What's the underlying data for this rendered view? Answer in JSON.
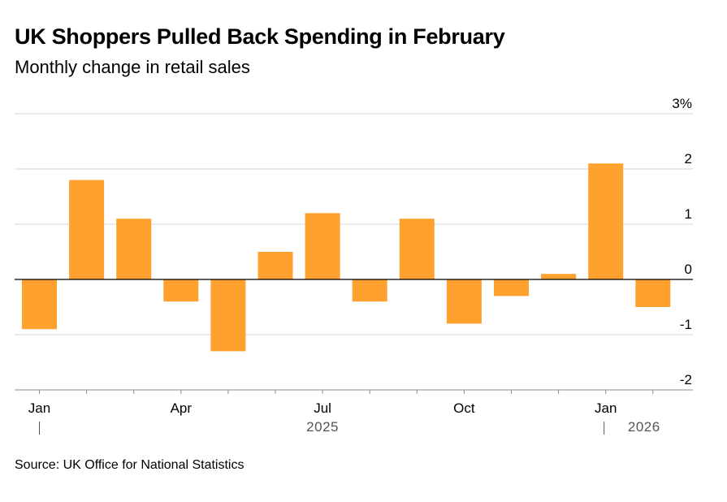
{
  "chart_data": {
    "type": "bar",
    "title": "UK Shoppers Pulled Back Spending in February",
    "subtitle": "Monthly change in retail sales",
    "categories": [
      "Jan 2025",
      "Feb 2025",
      "Mar 2025",
      "Apr 2025",
      "May 2025",
      "Jun 2025",
      "Jul 2025",
      "Aug 2025",
      "Sep 2025",
      "Oct 2025",
      "Nov 2025",
      "Dec 2025",
      "Jan 2026",
      "Feb 2026"
    ],
    "values": [
      -0.9,
      1.8,
      1.1,
      -0.4,
      -1.3,
      0.5,
      1.2,
      -0.4,
      1.1,
      -0.8,
      -0.3,
      0.1,
      2.1,
      -0.5
    ],
    "ylim": [
      -2,
      3
    ],
    "yticks": [
      -2,
      -1,
      0,
      1,
      2,
      3
    ],
    "ytick_labels": [
      "-2",
      "-1",
      "0",
      "1",
      "2",
      "3%"
    ],
    "xtick_labels": [
      {
        "label": "Jan",
        "index": 0
      },
      {
        "label": "Apr",
        "index": 3
      },
      {
        "label": "Jul",
        "index": 6
      },
      {
        "label": "Oct",
        "index": 9
      },
      {
        "label": "Jan",
        "index": 12
      }
    ],
    "year_labels": [
      {
        "label": "2025",
        "index": 6
      },
      {
        "label": "2026",
        "index": 13
      }
    ],
    "bar_color": "#ffa12e",
    "grid": true
  },
  "source": "Source: UK Office for National Statistics"
}
